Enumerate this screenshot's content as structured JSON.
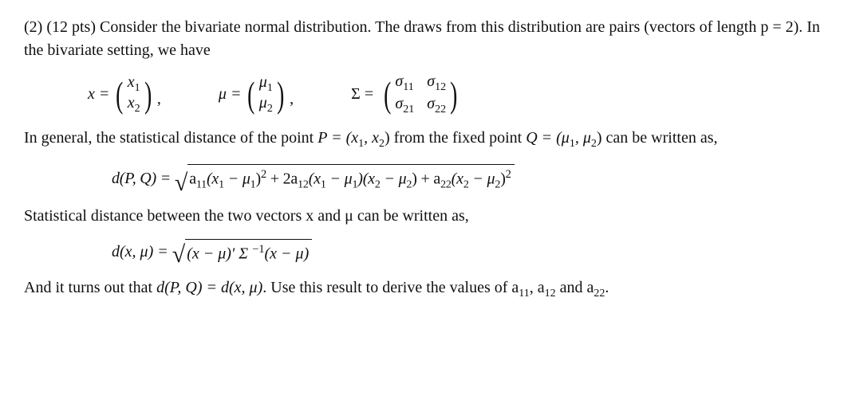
{
  "problem": {
    "intro": "(2) (12 pts) Consider the bivariate normal distribution. The draws from this distribution are pairs (vectors of length p = 2). In the bivariate setting, we have",
    "vectors": {
      "x_lhs": "x =",
      "x_r1": "x",
      "x_r1_sub": "1",
      "x_r2": "x",
      "x_r2_sub": "2",
      "mu_lhs": "μ =",
      "mu_r1": "μ",
      "mu_r1_sub": "1",
      "mu_r2": "μ",
      "mu_r2_sub": "2",
      "sigma_lhs": "Σ  =",
      "s11": "σ",
      "s11_sub": "11",
      "s12": "σ",
      "s12_sub": "12",
      "s21": "σ",
      "s21_sub": "21",
      "s22": "σ",
      "s22_sub": "22",
      "comma": ","
    },
    "para2a": "In general, the statistical distance of the point ",
    "para2b": "P = (x",
    "para2b_sub1": "1",
    "para2c": ", x",
    "para2c_sub2": "2",
    "para2d": ") from the fixed point ",
    "para2e": "Q = (μ",
    "para2e_sub1": "1",
    "para2f": ", μ",
    "para2f_sub2": "2",
    "para2g": ") can be written as,",
    "dPQ": {
      "lhs": "d(P, Q)  = ",
      "a11": "a",
      "a11_sub": "11",
      "t1a": "(x",
      "t1a_sub": "1",
      "t1b": " − μ",
      "t1b_sub": "1",
      "t1c": ")",
      "sq": "2",
      "plus2a": " + 2a",
      "a12_sub": "12",
      "t2a": "(x",
      "t2a_sub": "1",
      "t2b": " − μ",
      "t2b_sub": "1",
      "t2c": ")(x",
      "t2d_sub": "2",
      "t2e": " − μ",
      "t2e_sub": "2",
      "t2f": ")",
      "plusa22": " + a",
      "a22_sub": "22",
      "t3a": "(x",
      "t3a_sub": "2",
      "t3b": " − μ",
      "t3b_sub": "2",
      "t3c": ")"
    },
    "para3": "Statistical distance between the two vectors x and μ can be written as,",
    "dxmu": {
      "lhs": "d(x, μ)  = ",
      "rad": "(x  −  μ)′ Σ ",
      "inv": "−1",
      "rad2": "(x  −  μ)"
    },
    "para4a": "And it turns out that ",
    "para4b": "d(P, Q) = d(x, μ)",
    "para4c": ". Use this result to derive the values of a",
    "para4c_sub11": "11",
    "para4d": ", a",
    "para4d_sub12": "12",
    "para4e": " and a",
    "para4e_sub22": "22",
    "para4f": "."
  }
}
